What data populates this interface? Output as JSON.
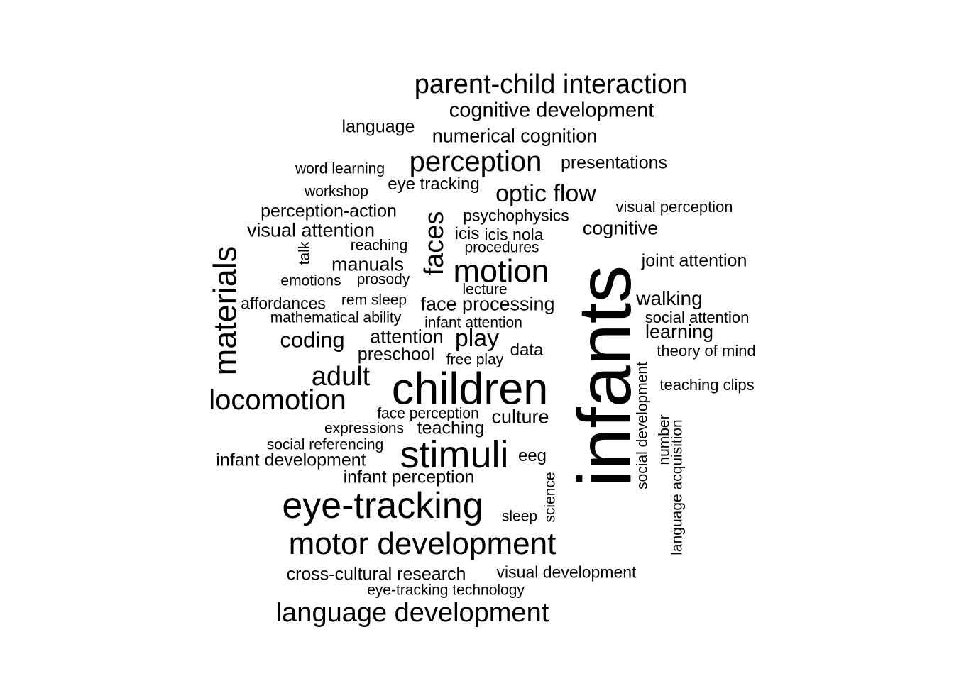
{
  "words": [
    {
      "text": "infants"
    },
    {
      "text": "children"
    },
    {
      "text": "eye-tracking"
    },
    {
      "text": "stimuli"
    },
    {
      "text": "materials"
    },
    {
      "text": "motor development"
    },
    {
      "text": "motion"
    },
    {
      "text": "language development"
    },
    {
      "text": "parent-child interaction"
    },
    {
      "text": "perception"
    },
    {
      "text": "locomotion"
    },
    {
      "text": "adult"
    },
    {
      "text": "faces"
    },
    {
      "text": "optic flow"
    },
    {
      "text": "play"
    },
    {
      "text": "cognitive development"
    },
    {
      "text": "coding"
    },
    {
      "text": "numerical cognition"
    },
    {
      "text": "face processing"
    },
    {
      "text": "walking"
    },
    {
      "text": "learning"
    },
    {
      "text": "cognitive"
    },
    {
      "text": "joint attention"
    },
    {
      "text": "attention"
    },
    {
      "text": "visual attention"
    },
    {
      "text": "manuals"
    },
    {
      "text": "culture"
    },
    {
      "text": "cross-cultural research"
    },
    {
      "text": "infant perception"
    },
    {
      "text": "infant development"
    },
    {
      "text": "teaching"
    },
    {
      "text": "preschool"
    },
    {
      "text": "perception-action"
    },
    {
      "text": "presentations"
    },
    {
      "text": "language"
    },
    {
      "text": "eye tracking"
    },
    {
      "text": "psychophysics"
    },
    {
      "text": "affordances"
    },
    {
      "text": "eeg"
    },
    {
      "text": "data"
    },
    {
      "text": "visual development"
    },
    {
      "text": "icis"
    },
    {
      "text": "icis nola"
    },
    {
      "text": "visual perception"
    },
    {
      "text": "social attention"
    },
    {
      "text": "theory of mind"
    },
    {
      "text": "teaching clips"
    },
    {
      "text": "word learning"
    },
    {
      "text": "reaching"
    },
    {
      "text": "emotions"
    },
    {
      "text": "prosody"
    },
    {
      "text": "rem sleep"
    },
    {
      "text": "mathematical ability"
    },
    {
      "text": "infant attention"
    },
    {
      "text": "procedures"
    },
    {
      "text": "lecture"
    },
    {
      "text": "free play"
    },
    {
      "text": "face perception"
    },
    {
      "text": "expressions"
    },
    {
      "text": "social referencing"
    },
    {
      "text": "sleep"
    },
    {
      "text": "eye-tracking technology"
    },
    {
      "text": "workshop"
    },
    {
      "text": "social development"
    },
    {
      "text": "number"
    },
    {
      "text": "language acquisition"
    },
    {
      "text": "science"
    },
    {
      "text": "talk"
    }
  ]
}
